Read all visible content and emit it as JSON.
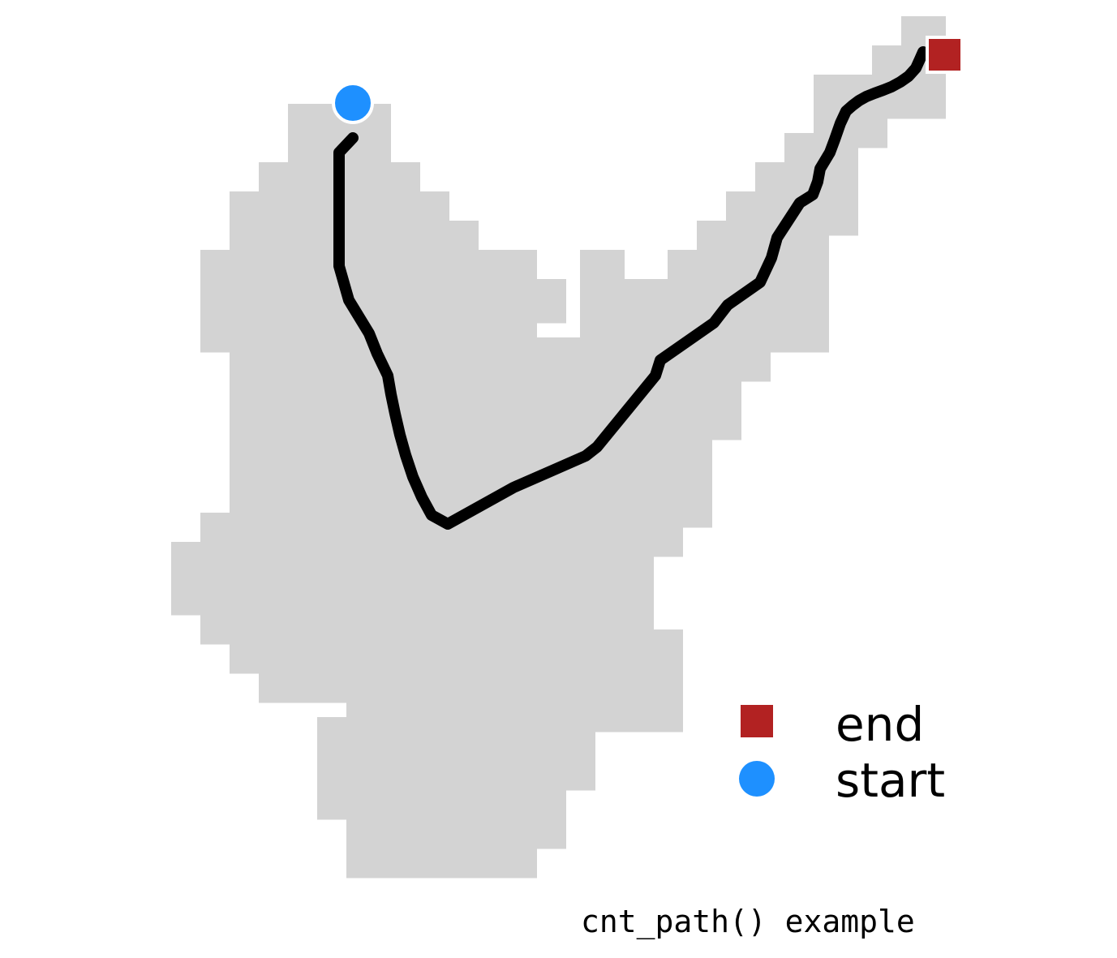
{
  "diagram": {
    "region_color": "#d3d3d3",
    "path_color": "#000000",
    "start_marker": {
      "color": "#1e90ff",
      "shape": "circle"
    },
    "end_marker": {
      "color": "#b22222",
      "shape": "square"
    }
  },
  "legend": {
    "items": [
      {
        "label": "end",
        "color": "#b22222",
        "shape": "square"
      },
      {
        "label": "start",
        "color": "#1e90ff",
        "shape": "circle"
      }
    ]
  },
  "caption": "cnt_path() example"
}
